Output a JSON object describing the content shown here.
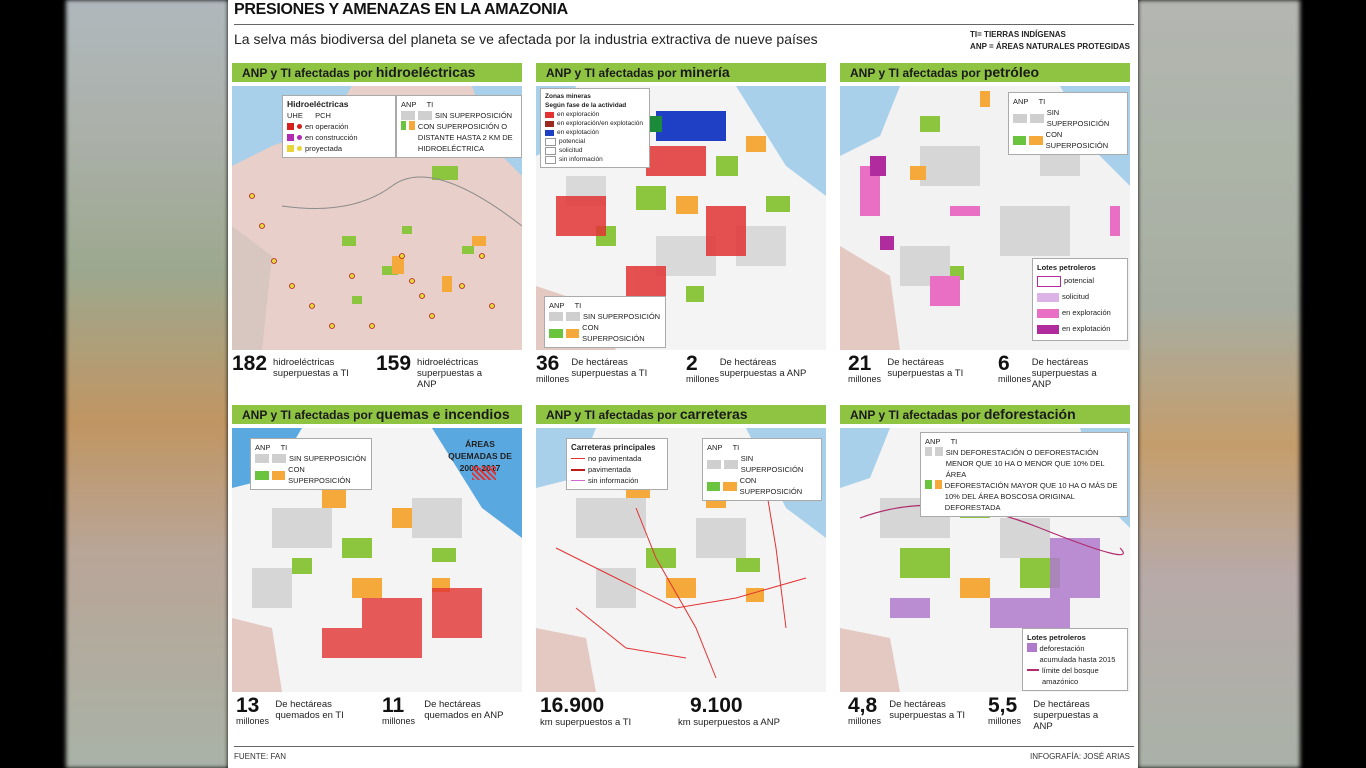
{
  "title": "PRESIONES Y AMENAZAS EN LA AMAZONIA",
  "subtitle": "La selva más biodiversa del planeta se ve afectada por la industria extractiva de nueve países",
  "abbreviations": [
    "TI= TIERRAS INDÍGENAS",
    "ANP = ÁREAS NATURALES PROTEGIDAS"
  ],
  "colors": {
    "header_green": "#8ec442",
    "overlap_orange": "#f4a93a",
    "overlap_green": "#6bc43e",
    "no_overlap_gray": "#cfcfcf",
    "water": "#9ecae8"
  },
  "legend_common": {
    "anp": "ANP",
    "ti": "TI",
    "sin": "SIN SUPERPOSICIÓN",
    "con": "CON SUPERPOSICIÓN"
  },
  "panels": [
    {
      "prefix": "ANP y TI afectadas por",
      "topic": "hidroeléctricas",
      "legend_extra": {
        "title": "Hidroeléctricas",
        "uhe": "UHE",
        "pch": "PCH",
        "items": [
          "en operación",
          "en construcción",
          "proyectada"
        ],
        "con_long": "CON SUPERPOSICIÓN O DISTANTE HASTA 2 KM DE HIDROELÉCTRICA"
      },
      "stats": [
        {
          "value": "182",
          "unit": "",
          "desc": "hidroeléctricas superpuestas a TI"
        },
        {
          "value": "159",
          "unit": "",
          "desc": "hidroeléctricas superpuestas a ANP"
        }
      ]
    },
    {
      "prefix": "ANP y TI afectadas por",
      "topic": "minería",
      "legend_extra": {
        "title": "Zonas mineras",
        "subtitle": "Según fase de la actividad",
        "items": [
          "en exploración",
          "en exploración/en explotación",
          "en explotación",
          "potencial",
          "solicitud",
          "sin información"
        ]
      },
      "stats": [
        {
          "value": "36",
          "unit": "millones",
          "desc": "De hectáreas superpuestas a TI"
        },
        {
          "value": "2",
          "unit": "millones",
          "desc": "De hectáreas superpuestas a ANP"
        }
      ]
    },
    {
      "prefix": "ANP y TI afectadas por",
      "topic": "petróleo",
      "legend_extra": {
        "title": "Lotes petroleros",
        "items": [
          "potencial",
          "solicitud",
          "en exploración",
          "en explotación"
        ]
      },
      "stats": [
        {
          "value": "21",
          "unit": "millones",
          "desc": "De hectáreas superpuestas a TI"
        },
        {
          "value": "6",
          "unit": "millones",
          "desc": "De hectáreas superpuestas a ANP"
        }
      ]
    },
    {
      "prefix": "ANP y TI afectadas por",
      "topic": "quemas e incendios",
      "legend_extra": {
        "title": "ÁREAS QUEMADAS DE 2000-2017"
      },
      "stats": [
        {
          "value": "13",
          "unit": "millones",
          "desc": "De hectáreas quemados en TI"
        },
        {
          "value": "11",
          "unit": "millones",
          "desc": "De hectáreas quemados en ANP"
        }
      ]
    },
    {
      "prefix": "ANP y TI afectadas por",
      "topic": "carreteras",
      "legend_extra": {
        "title": "Carreteras principales",
        "items": [
          "no pavimentada",
          "pavimentada",
          "sin información"
        ]
      },
      "stats": [
        {
          "value": "16.900",
          "unit": "",
          "desc": "km superpuestos a TI"
        },
        {
          "value": "9.100",
          "unit": "",
          "desc": "km superpuestos a ANP"
        }
      ]
    },
    {
      "prefix": "ANP y TI afectadas por",
      "topic": "deforestación",
      "legend_extra": {
        "sin_long": "SIN DEFORESTACIÓN O DEFORESTACIÓN MENOR QUE 10 HA O MENOR QUE 10% DEL ÁREA",
        "con_long": "DEFORESTACIÓN MAYOR QUE 10 HA O MÁS DE 10% DEL ÁREA BOSCOSA ORIGINAL DEFORESTADA",
        "title": "Lotes petroleros",
        "items": [
          "deforestación acumulada hasta 2015",
          "límite del bosque amazónico"
        ]
      },
      "stats": [
        {
          "value": "4,8",
          "unit": "millones",
          "desc": "De hectáreas superpuestas a TI"
        },
        {
          "value": "5,5",
          "unit": "millones",
          "desc": "De hectáreas superpuestas a ANP"
        }
      ]
    }
  ],
  "source": "FUENTE: FAN",
  "credit": "INFOGRAFÍA: JOSÉ ARIAS"
}
